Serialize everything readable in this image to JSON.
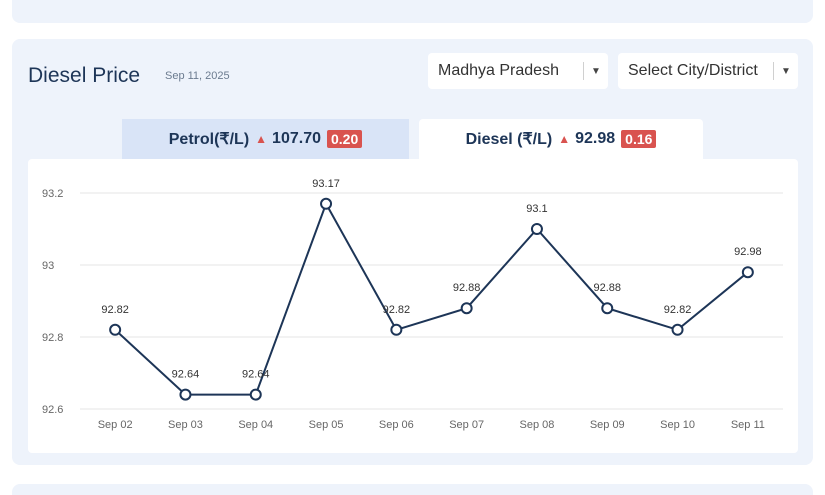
{
  "card": {
    "title": "Diesel Price",
    "date": "Sep 11, 2025",
    "state_select": "Madhya Pradesh",
    "city_select": "Select City/District"
  },
  "tabs": {
    "petrol": {
      "label": "Petrol(₹/L)",
      "price": "107.70",
      "change": "0.20"
    },
    "diesel": {
      "label": "Diesel (₹/L)",
      "price": "92.98",
      "change": "0.16"
    }
  },
  "colors": {
    "line": "#1d3557",
    "up": "#d9534f",
    "tab_active": "#ffffff",
    "tab_inactive": "#d9e4f7"
  },
  "chart_data": {
    "type": "line",
    "categories": [
      "Sep 02",
      "Sep 03",
      "Sep 04",
      "Sep 05",
      "Sep 06",
      "Sep 07",
      "Sep 08",
      "Sep 09",
      "Sep 10",
      "Sep 11"
    ],
    "series": [
      {
        "values": [
          92.82,
          92.64,
          92.64,
          93.17,
          92.82,
          92.88,
          93.1,
          92.88,
          92.82,
          92.98
        ]
      }
    ],
    "data_labels": [
      "92.82",
      "92.64",
      "92.64",
      "93.17",
      "92.82",
      "92.88",
      "93.1",
      "92.88",
      "92.82",
      "92.98"
    ],
    "yticks": [
      92.6,
      92.8,
      93,
      93.2
    ],
    "ytick_labels": [
      "92.6",
      "92.8",
      "93",
      "93.2"
    ],
    "ylim": [
      92.6,
      93.2
    ],
    "grid": true
  }
}
